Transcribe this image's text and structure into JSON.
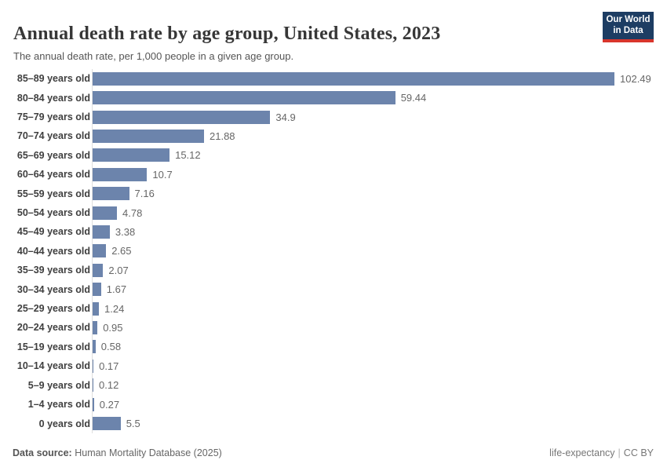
{
  "header": {
    "title": "Annual death rate by age group, United States, 2023",
    "subtitle": "The annual death rate, per 1,000 people in a given age group."
  },
  "logo": {
    "line1": "Our World",
    "line2": "in Data",
    "bg_color": "#1d3d63",
    "accent_color": "#d8352c"
  },
  "chart_data": {
    "type": "bar",
    "orientation": "horizontal",
    "title": "Annual death rate by age group, United States, 2023",
    "xlabel": "",
    "ylabel": "",
    "xlim": [
      0,
      102.49
    ],
    "grid": false,
    "legend": false,
    "bar_color": "#6c84ac",
    "categories": [
      "85–89 years old",
      "80–84 years old",
      "75–79 years old",
      "70–74 years old",
      "65–69 years old",
      "60–64 years old",
      "55–59 years old",
      "50–54 years old",
      "45–49 years old",
      "40–44 years old",
      "35–39 years old",
      "30–34 years old",
      "25–29 years old",
      "20–24 years old",
      "15–19 years old",
      "10–14 years old",
      "5–9 years old",
      "1–4 years old",
      "0 years old"
    ],
    "values": [
      102.49,
      59.44,
      34.9,
      21.88,
      15.12,
      10.7,
      7.16,
      4.78,
      3.38,
      2.65,
      2.07,
      1.67,
      1.24,
      0.95,
      0.58,
      0.17,
      0.12,
      0.27,
      5.5
    ],
    "value_labels": [
      "102.49",
      "59.44",
      "34.9",
      "21.88",
      "15.12",
      "10.7",
      "7.16",
      "4.78",
      "3.38",
      "2.65",
      "2.07",
      "1.67",
      "1.24",
      "0.95",
      "0.58",
      "0.17",
      "0.12",
      "0.27",
      "5.5"
    ]
  },
  "footer": {
    "datasource_label": "Data source:",
    "datasource_value": "Human Mortality Database (2025)",
    "slug": "life-expectancy",
    "divider": "|",
    "license": "CC BY"
  }
}
